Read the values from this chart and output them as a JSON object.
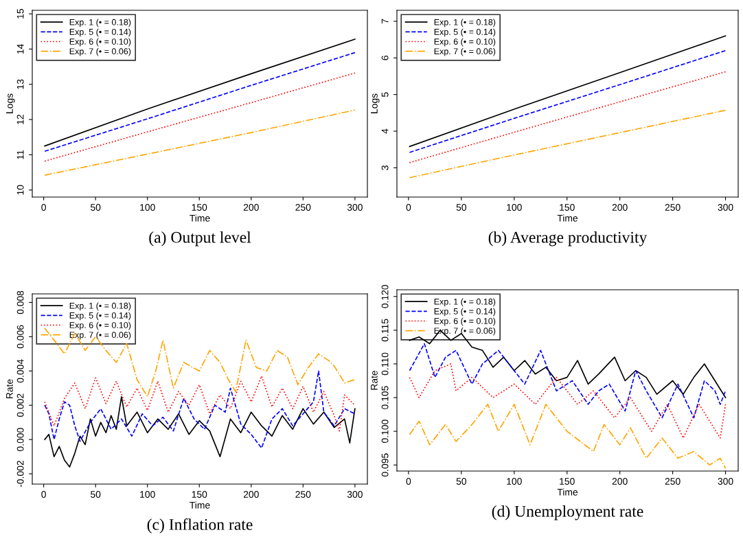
{
  "chart_data": [
    {
      "type": "line",
      "title": "(a) Output level",
      "xlabel": "Time",
      "ylabel": "Logs",
      "xlim": [
        -11,
        312
      ],
      "xticks": [
        0,
        50,
        100,
        150,
        200,
        250,
        300
      ],
      "ylim": [
        9.8,
        15.1
      ],
      "yticks": [
        10,
        11,
        12,
        13,
        14,
        15
      ],
      "grid": false,
      "legend": "top left",
      "series": [
        {
          "name": "Exp. 1 (• = 0.18)",
          "color": "#000000",
          "line_style": "solid",
          "x": [
            1,
            100,
            200,
            300
          ],
          "values": [
            11.25,
            12.3,
            13.3,
            14.28
          ]
        },
        {
          "name": "Exp. 5 (• = 0.14)",
          "color": "#0000ff",
          "line_style": "dashed",
          "x": [
            1,
            100,
            200,
            300
          ],
          "values": [
            11.1,
            12.02,
            12.97,
            13.9
          ]
        },
        {
          "name": "Exp. 6 (• = 0.10)",
          "color": "#ff0000",
          "line_style": "dotted",
          "x": [
            1,
            100,
            200,
            300
          ],
          "values": [
            10.82,
            11.65,
            12.48,
            13.32
          ]
        },
        {
          "name": "Exp. 7 (• = 0.06)",
          "color": "#ffa500",
          "line_style": "dashdot",
          "x": [
            1,
            100,
            200,
            300
          ],
          "values": [
            10.42,
            11.02,
            11.63,
            12.27
          ]
        }
      ]
    },
    {
      "type": "line",
      "title": "(b) Average productivity",
      "xlabel": "Time",
      "ylabel": "Logs",
      "xlim": [
        -11,
        312
      ],
      "xticks": [
        0,
        50,
        100,
        150,
        200,
        250,
        300
      ],
      "ylim": [
        2.2,
        7.3
      ],
      "yticks": [
        3,
        4,
        5,
        6,
        7
      ],
      "grid": false,
      "legend": "top left",
      "series": [
        {
          "name": "Exp. 1 (• = 0.18)",
          "color": "#000000",
          "line_style": "solid",
          "x": [
            1,
            100,
            200,
            300
          ],
          "values": [
            3.58,
            4.6,
            5.6,
            6.6
          ]
        },
        {
          "name": "Exp. 5 (• = 0.14)",
          "color": "#0000ff",
          "line_style": "dashed",
          "x": [
            1,
            100,
            200,
            300
          ],
          "values": [
            3.42,
            4.35,
            5.27,
            6.2
          ]
        },
        {
          "name": "Exp. 6 (• = 0.10)",
          "color": "#ff0000",
          "line_style": "dotted",
          "x": [
            1,
            100,
            200,
            300
          ],
          "values": [
            3.14,
            3.97,
            4.8,
            5.62
          ]
        },
        {
          "name": "Exp. 7 (• = 0.06)",
          "color": "#ffa500",
          "line_style": "dashdot",
          "x": [
            1,
            100,
            200,
            300
          ],
          "values": [
            2.73,
            3.35,
            3.96,
            4.57
          ]
        }
      ]
    },
    {
      "type": "line",
      "title": "(c) Inflation rate",
      "xlabel": "Time",
      "ylabel": "Rate",
      "xlim": [
        -11,
        312
      ],
      "xticks": [
        0,
        50,
        100,
        150,
        200,
        250,
        300
      ],
      "ylim": [
        -0.0026,
        0.0085
      ],
      "yticks": [
        {
          "value": -0.002,
          "label": "-0.002"
        },
        {
          "value": 0,
          "label": "0.000"
        },
        {
          "value": 0.002,
          "label": "0.002"
        },
        {
          "value": 0.004,
          "label": "0.004"
        },
        {
          "value": 0.006,
          "label": "0.006"
        },
        {
          "value": 0.008,
          "label": "0.008"
        }
      ],
      "grid": false,
      "legend": "top left",
      "series": [
        {
          "name": "Exp. 1 (• = 0.18)",
          "color": "#000000",
          "line_style": "solid",
          "x": [
            1,
            5,
            10,
            15,
            20,
            25,
            30,
            35,
            40,
            45,
            50,
            55,
            60,
            65,
            70,
            75,
            80,
            90,
            100,
            110,
            120,
            130,
            140,
            150,
            160,
            170,
            180,
            190,
            200,
            210,
            220,
            230,
            240,
            250,
            260,
            270,
            280,
            290,
            295,
            300
          ],
          "values": [
            0.0,
            0.0003,
            -0.001,
            -0.0004,
            -0.0012,
            -0.0016,
            -0.0008,
            0.0002,
            -0.0003,
            0.0012,
            0.0002,
            0.001,
            0.0004,
            0.0014,
            0.0006,
            0.0025,
            0.0008,
            0.0016,
            0.0004,
            0.0012,
            0.0006,
            0.0015,
            0.0003,
            0.0011,
            0.0005,
            -0.001,
            0.0012,
            0.0004,
            0.0016,
            0.0008,
            0.0002,
            0.0014,
            0.0006,
            0.0018,
            0.0009,
            0.0016,
            0.0007,
            0.0012,
            -0.0002,
            0.0018
          ]
        },
        {
          "name": "Exp. 5 (• = 0.14)",
          "color": "#0000ff",
          "line_style": "dashed",
          "x": [
            1,
            5,
            10,
            15,
            20,
            25,
            30,
            35,
            45,
            55,
            65,
            75,
            85,
            95,
            105,
            115,
            125,
            135,
            145,
            155,
            165,
            175,
            180,
            190,
            200,
            210,
            220,
            230,
            240,
            250,
            260,
            265,
            270,
            280,
            290,
            300
          ],
          "values": [
            0.002,
            0.0015,
            0.0,
            0.0012,
            0.0022,
            0.002,
            0.0008,
            -0.0001,
            0.001,
            0.0018,
            0.0006,
            0.0012,
            0.0002,
            0.0015,
            0.0008,
            0.0013,
            0.0005,
            0.0024,
            0.0012,
            0.0006,
            0.002,
            0.0016,
            0.003,
            0.0009,
            0.0003,
            -0.0005,
            0.0012,
            0.0018,
            0.0008,
            0.0015,
            0.0022,
            0.004,
            0.0016,
            0.0008,
            0.0018,
            0.0015
          ]
        },
        {
          "name": "Exp. 6 (• = 0.10)",
          "color": "#ff0000",
          "line_style": "dotted",
          "x": [
            1,
            10,
            20,
            30,
            40,
            50,
            60,
            70,
            80,
            90,
            100,
            110,
            120,
            130,
            140,
            150,
            160,
            170,
            180,
            190,
            200,
            210,
            220,
            230,
            240,
            250,
            260,
            270,
            280,
            285,
            290,
            300
          ],
          "values": [
            0.0022,
            0.0008,
            0.0024,
            0.0033,
            0.0018,
            0.0036,
            0.0021,
            0.0034,
            0.0019,
            0.003,
            0.0017,
            0.0034,
            0.0016,
            0.0028,
            0.002,
            0.0032,
            0.0015,
            0.0026,
            0.0018,
            0.0034,
            0.0022,
            0.0037,
            0.0019,
            0.003,
            0.0018,
            0.0031,
            0.0016,
            0.0028,
            0.0014,
            0.0005,
            0.0026,
            0.002
          ]
        },
        {
          "name": "Exp. 7 (• = 0.06)",
          "color": "#ffa500",
          "line_style": "dashdot",
          "x": [
            1,
            10,
            20,
            30,
            40,
            50,
            60,
            70,
            80,
            90,
            100,
            108,
            115,
            125,
            135,
            150,
            160,
            170,
            178,
            185,
            195,
            205,
            215,
            225,
            235,
            245,
            255,
            265,
            275,
            280,
            290,
            300
          ],
          "values": [
            0.0065,
            0.0058,
            0.005,
            0.0062,
            0.0052,
            0.006,
            0.0052,
            0.0045,
            0.0056,
            0.0035,
            0.0025,
            0.004,
            0.0058,
            0.003,
            0.0045,
            0.004,
            0.0052,
            0.0045,
            0.0035,
            0.0028,
            0.0058,
            0.0042,
            0.004,
            0.0052,
            0.0048,
            0.0032,
            0.0042,
            0.005,
            0.0046,
            0.0043,
            0.0033,
            0.0035
          ]
        }
      ]
    },
    {
      "type": "line",
      "title": "(d) Unemployment rate",
      "xlabel": "Time",
      "ylabel": "Rate",
      "xlim": [
        -11,
        312
      ],
      "xticks": [
        0,
        50,
        100,
        150,
        200,
        250,
        300
      ],
      "ylim": [
        0.0941,
        0.121
      ],
      "yticks": [
        0.095,
        {
          "value": 0.1,
          "label": "0.100"
        },
        0.105,
        {
          "value": 0.11,
          "label": "0.110"
        },
        0.115,
        {
          "value": 0.12,
          "label": "0.120"
        }
      ],
      "grid": false,
      "legend": "top left",
      "series": [
        {
          "name": "Exp. 1 (• = 0.18)",
          "color": "#000000",
          "line_style": "solid",
          "x": [
            1,
            10,
            20,
            30,
            40,
            50,
            60,
            70,
            80,
            90,
            100,
            110,
            120,
            130,
            140,
            150,
            160,
            170,
            180,
            195,
            205,
            215,
            225,
            235,
            250,
            260,
            270,
            280,
            290,
            300
          ],
          "values": [
            0.1135,
            0.114,
            0.113,
            0.115,
            0.1135,
            0.1145,
            0.1125,
            0.112,
            0.1095,
            0.111,
            0.109,
            0.1105,
            0.1085,
            0.1095,
            0.1075,
            0.108,
            0.1105,
            0.107,
            0.1085,
            0.111,
            0.1075,
            0.109,
            0.108,
            0.1055,
            0.1075,
            0.1055,
            0.108,
            0.11,
            0.1075,
            0.105
          ]
        },
        {
          "name": "Exp. 5 (• = 0.14)",
          "color": "#0000ff",
          "line_style": "dashed",
          "x": [
            1,
            15,
            25,
            35,
            45,
            60,
            70,
            85,
            100,
            110,
            125,
            140,
            155,
            170,
            180,
            190,
            205,
            215,
            225,
            240,
            255,
            270,
            280,
            290,
            295,
            300
          ],
          "values": [
            0.109,
            0.113,
            0.108,
            0.111,
            0.112,
            0.107,
            0.11,
            0.112,
            0.109,
            0.107,
            0.112,
            0.106,
            0.1075,
            0.104,
            0.106,
            0.107,
            0.103,
            0.109,
            0.106,
            0.102,
            0.107,
            0.102,
            0.1075,
            0.106,
            0.104,
            0.106
          ]
        },
        {
          "name": "Exp. 6 (• = 0.10)",
          "color": "#ff0000",
          "line_style": "dotted",
          "x": [
            1,
            10,
            25,
            40,
            45,
            60,
            80,
            100,
            120,
            140,
            160,
            175,
            195,
            210,
            230,
            245,
            260,
            275,
            295,
            300
          ],
          "values": [
            0.108,
            0.105,
            0.109,
            0.11,
            0.106,
            0.108,
            0.105,
            0.107,
            0.104,
            0.108,
            0.104,
            0.106,
            0.102,
            0.105,
            0.1,
            0.104,
            0.099,
            0.104,
            0.099,
            0.104
          ]
        },
        {
          "name": "Exp. 7 (• = 0.06)",
          "color": "#ffa500",
          "line_style": "dashdot",
          "x": [
            1,
            10,
            20,
            35,
            45,
            60,
            75,
            85,
            100,
            115,
            130,
            150,
            175,
            185,
            200,
            210,
            225,
            240,
            255,
            270,
            285,
            295,
            300
          ],
          "values": [
            0.0995,
            0.1015,
            0.098,
            0.101,
            0.0985,
            0.101,
            0.104,
            0.1,
            0.104,
            0.098,
            0.104,
            0.1,
            0.097,
            0.101,
            0.098,
            0.1005,
            0.096,
            0.099,
            0.096,
            0.097,
            0.095,
            0.096,
            0.0945
          ]
        }
      ]
    }
  ]
}
